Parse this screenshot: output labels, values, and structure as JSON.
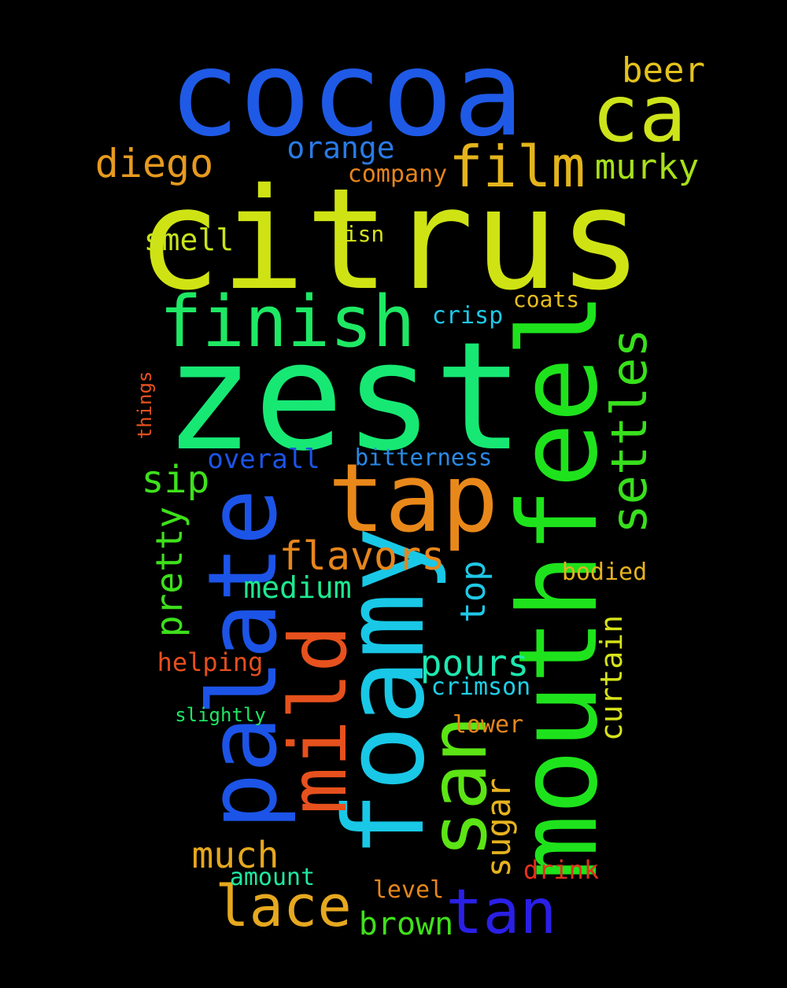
{
  "words": [
    {
      "text": "cocoa",
      "color": "#1f5ae6"
    },
    {
      "text": "citrus",
      "color": "#cfe314"
    },
    {
      "text": "zest",
      "color": "#17e874"
    },
    {
      "text": "foamy",
      "color": "#19c8e6"
    },
    {
      "text": "mouthfeel",
      "color": "#1ee31c"
    },
    {
      "text": "tap",
      "color": "#e9881a"
    },
    {
      "text": "palate",
      "color": "#1c54e8"
    },
    {
      "text": "tan",
      "color": "#2a1fe5"
    },
    {
      "text": "mild",
      "color": "#e6511d"
    },
    {
      "text": "san",
      "color": "#5ce414"
    },
    {
      "text": "finish",
      "color": "#1ee864"
    },
    {
      "text": "ca",
      "color": "#cde31a"
    },
    {
      "text": "film",
      "color": "#e3b41c"
    },
    {
      "text": "lace",
      "color": "#e6a81f"
    },
    {
      "text": "settles",
      "color": "#38e01c"
    },
    {
      "text": "diego",
      "color": "#e69a1f"
    },
    {
      "text": "murky",
      "color": "#a8e01a"
    },
    {
      "text": "beer",
      "color": "#e3c21c"
    },
    {
      "text": "orange",
      "color": "#2a7ae6"
    },
    {
      "text": "company",
      "color": "#e6841c"
    },
    {
      "text": "smell",
      "color": "#c8e31a"
    },
    {
      "text": "isn",
      "color": "#d4e31a"
    },
    {
      "text": "coats",
      "color": "#e6be1f"
    },
    {
      "text": "crisp",
      "color": "#1ec8e6"
    },
    {
      "text": "things",
      "color": "#e6511d"
    },
    {
      "text": "overall",
      "color": "#1c54e8"
    },
    {
      "text": "bitterness",
      "color": "#2a8ae6"
    },
    {
      "text": "sip",
      "color": "#3ee01c"
    },
    {
      "text": "flavors",
      "color": "#e6861c"
    },
    {
      "text": "pretty",
      "color": "#3ee01c"
    },
    {
      "text": "top",
      "color": "#1ec8e6"
    },
    {
      "text": "medium",
      "color": "#1ee890"
    },
    {
      "text": "bodied",
      "color": "#e6b21f"
    },
    {
      "text": "pours",
      "color": "#1ee8b0"
    },
    {
      "text": "helping",
      "color": "#e64e1d"
    },
    {
      "text": "curtain",
      "color": "#d6e31a"
    },
    {
      "text": "crimson",
      "color": "#1ed0e6"
    },
    {
      "text": "slightly",
      "color": "#1ee864"
    },
    {
      "text": "lower",
      "color": "#e6861c"
    },
    {
      "text": "sugar",
      "color": "#e6b21f"
    },
    {
      "text": "much",
      "color": "#e6a81f"
    },
    {
      "text": "drink",
      "color": "#e6301d"
    },
    {
      "text": "amount",
      "color": "#1ee8a0"
    },
    {
      "text": "level",
      "color": "#e6861c"
    },
    {
      "text": "brown",
      "color": "#40e01c"
    }
  ]
}
